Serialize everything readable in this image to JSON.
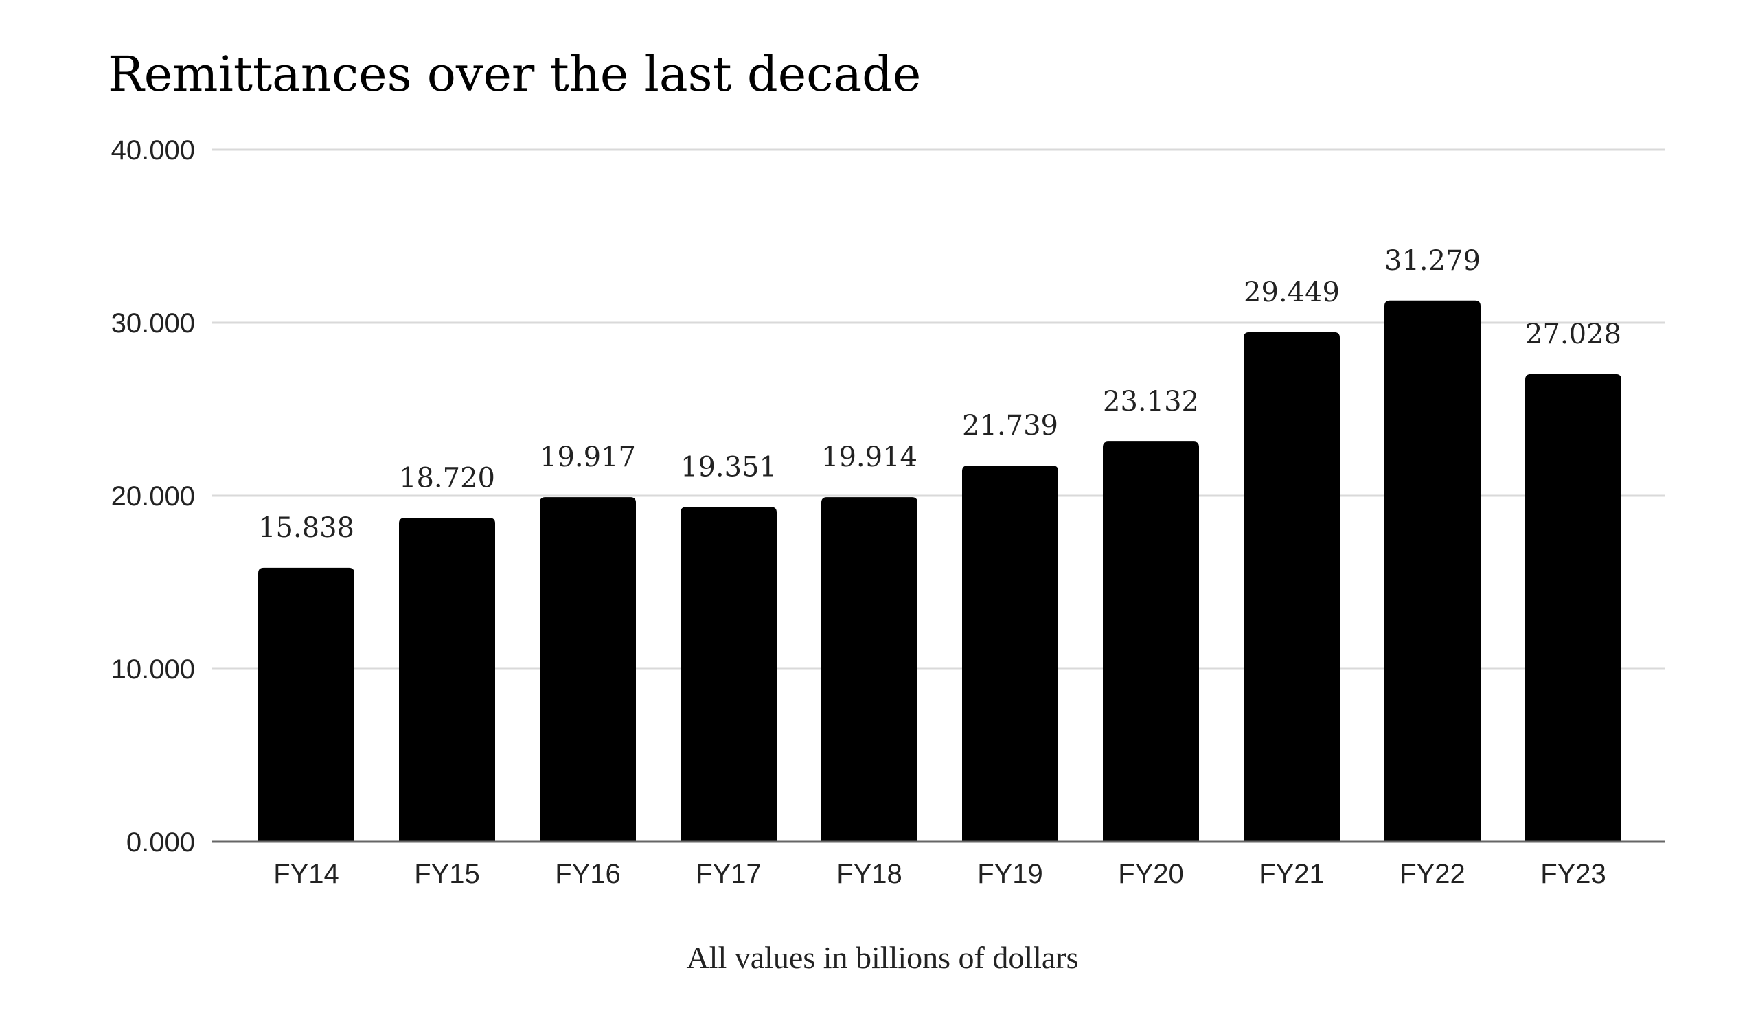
{
  "chart_data": {
    "type": "bar",
    "title": "Remittances over the last decade",
    "xlabel": "All values in billions of dollars",
    "ylabel": "",
    "categories": [
      "FY14",
      "FY15",
      "FY16",
      "FY17",
      "FY18",
      "FY19",
      "FY20",
      "FY21",
      "FY22",
      "FY23"
    ],
    "values": [
      15.838,
      18.72,
      19.917,
      19.351,
      19.914,
      21.739,
      23.132,
      29.449,
      31.279,
      27.028
    ],
    "data_labels": [
      "15.838",
      "18.720",
      "19.917",
      "19.351",
      "19.914",
      "21.739",
      "23.132",
      "29.449",
      "31.279",
      "27.028"
    ],
    "ylim": [
      0,
      40
    ],
    "yticks": [
      0,
      10,
      20,
      30,
      40
    ],
    "ytick_labels": [
      "0.000",
      "10.000",
      "20.000",
      "30.000",
      "40.000"
    ],
    "grid": true,
    "legend": "none",
    "colors": {
      "bar": "#000000",
      "grid": "#d9d9d9",
      "axis": "#666666"
    }
  }
}
